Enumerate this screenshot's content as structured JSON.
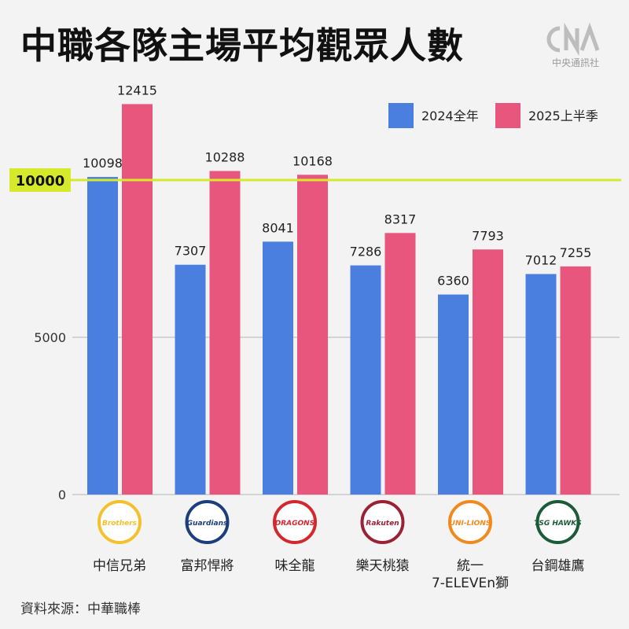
{
  "title": "中職各隊主場平均觀眾人數",
  "logo": {
    "name": "CNA",
    "caption": "中央通訊社"
  },
  "source": "資料來源：中華職棒",
  "chart_data": {
    "type": "bar",
    "title": "中職各隊主場平均觀眾人數",
    "categories": [
      "中信兄弟",
      "富邦悍將",
      "味全龍",
      "樂天桃猿",
      "統一\n7-ELEVEn獅",
      "台鋼雄鷹"
    ],
    "series": [
      {
        "name": "2024全年",
        "color": "#4a7fe0",
        "values": [
          10098,
          7307,
          8041,
          7286,
          6360,
          7012
        ]
      },
      {
        "name": "2025上半季",
        "color": "#e8567e",
        "values": [
          12415,
          10288,
          10168,
          8317,
          7793,
          7255
        ]
      }
    ],
    "yticks": [
      0,
      5000
    ],
    "ylim": [
      0,
      15000
    ],
    "reference_line": {
      "value": 10000,
      "label": "10000",
      "color": "#d6ea2c"
    },
    "team_logos": [
      {
        "label": "Brothers",
        "color": "#f3c12b"
      },
      {
        "label": "Guardians",
        "color": "#1c3e7c"
      },
      {
        "label": "DRAGONS",
        "color": "#d2282e"
      },
      {
        "label": "Rakuten",
        "color": "#9b2235"
      },
      {
        "label": "UNI-LIONS",
        "color": "#f08a1d"
      },
      {
        "label": "TSG HAWKS",
        "color": "#1d5a3a"
      }
    ],
    "legend_position": "top-right",
    "grid": true
  }
}
